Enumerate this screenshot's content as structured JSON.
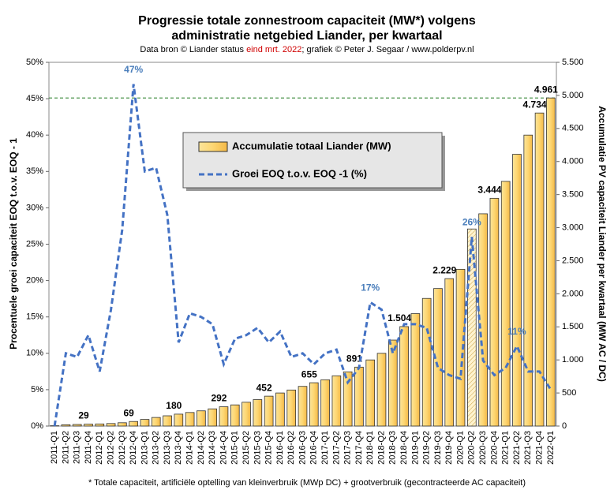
{
  "chart_data": {
    "type": "bar_line",
    "title": [
      "Progressie totale zonnestroom capaciteit (MW*) volgens",
      "administratie  netgebied Liander, per kwartaal"
    ],
    "subtitle": [
      "Data bron © Liander status ",
      "eind mrt. 2022",
      "; grafiek © Peter J. Segaar / www.polderpv.nl"
    ],
    "footnote": "* Totale capaciteit, artificiële optelling van kleinverbruik (MWp DC) + grootverbruik (gecontracteerde AC capaciteit)",
    "y_label": "Procentuele  groei capaciteit EOQ t.o.v. EOQ - 1",
    "y2_label": "Accumulatie  PV capaciteit Liander per kwartaal (MW AC / DC)",
    "categories": [
      "2011-Q1",
      "2011-Q2",
      "2011-Q3",
      "2011-Q4",
      "2012-Q1",
      "2012-Q2",
      "2012-Q3",
      "2012-Q4",
      "2013-Q1",
      "2013-Q2",
      "2013-Q3",
      "2013-Q4",
      "2014-Q1",
      "2014-Q2",
      "2014-Q3",
      "2014-Q4",
      "2015-Q1",
      "2015-Q2",
      "2015-Q3",
      "2015-Q4",
      "2016-Q1",
      "2016-Q2",
      "2016-Q3",
      "2016-Q4",
      "2017-Q1",
      "2017-Q2",
      "2017-Q3",
      "2017-Q4",
      "2018-Q1",
      "2018-Q2",
      "2018-Q3",
      "2018-Q4",
      "2019-Q1",
      "2019-Q2",
      "2019-Q3",
      "2019-Q4",
      "2020-Q1",
      "2020-Q2",
      "2020-Q3",
      "2020-Q4",
      "2021-Q1",
      "2021-Q2",
      "2021-Q3",
      "2021-Q4",
      "2022-Q1"
    ],
    "series": [
      {
        "name": "Accumulatie totaal Liander (MW)",
        "type": "bar",
        "axis": "y2",
        "color": "#fdd672",
        "values": [
          5,
          20,
          24,
          29,
          32,
          38,
          50,
          69,
          100,
          130,
          155,
          180,
          205,
          230,
          260,
          292,
          320,
          360,
          400,
          452,
          500,
          545,
          600,
          655,
          700,
          760,
          820,
          891,
          1000,
          1100,
          1300,
          1504,
          1700,
          1930,
          2080,
          2229,
          2370,
          2980,
          3210,
          3444,
          3700,
          4110,
          4400,
          4734,
          4961
        ],
        "value_labels": [
          null,
          null,
          null,
          "29",
          null,
          null,
          null,
          "69",
          null,
          null,
          null,
          "180",
          null,
          null,
          null,
          "292",
          null,
          null,
          null,
          "452",
          null,
          null,
          null,
          "655",
          null,
          null,
          null,
          "891",
          null,
          null,
          null,
          "1.504",
          null,
          null,
          null,
          "2.229",
          null,
          null,
          null,
          "3.444",
          null,
          null,
          null,
          "4.734",
          "4.961"
        ]
      },
      {
        "name": "Groei EOQ t.o.v. EOQ -1 (%)",
        "type": "line",
        "axis": "y",
        "color": "#4472c4",
        "values": [
          0,
          10,
          9.5,
          12.5,
          7.5,
          16,
          27,
          47,
          35,
          35.5,
          29,
          11.5,
          15.5,
          15,
          14,
          8.5,
          12,
          12.5,
          13.5,
          11.5,
          13,
          9.5,
          10,
          8.5,
          10,
          10.5,
          6,
          8,
          17,
          16,
          10,
          14,
          14,
          13.5,
          8,
          7,
          6.5,
          26,
          9,
          7,
          8,
          11,
          7.5,
          7.5,
          5
        ]
      }
    ],
    "annotations": [
      {
        "label": "47%",
        "category": "2012-Q4"
      },
      {
        "label": "17%",
        "category": "2018-Q1"
      },
      {
        "label": "26%",
        "category": "2020-Q2"
      },
      {
        "label": "11%",
        "category": "2021-Q2"
      }
    ],
    "hatched_categories": [
      "2020-Q2"
    ],
    "reference_line": {
      "axis": "y2",
      "value": 4961,
      "color": "#3a8a3a"
    },
    "ylim": [
      0,
      50
    ],
    "yticks": [
      {
        "value": 0,
        "label": "0%"
      },
      {
        "value": 5,
        "label": "5%"
      },
      {
        "value": 10,
        "label": "10%"
      },
      {
        "value": 15,
        "label": "15%"
      },
      {
        "value": 20,
        "label": "20%"
      },
      {
        "value": 25,
        "label": "25%"
      },
      {
        "value": 30,
        "label": "30%"
      },
      {
        "value": 35,
        "label": "35%"
      },
      {
        "value": 40,
        "label": "40%"
      },
      {
        "value": 45,
        "label": "45%"
      },
      {
        "value": 50,
        "label": "50%"
      }
    ],
    "y2lim": [
      0,
      5500
    ],
    "y2ticks": [
      0,
      {
        "value": 500,
        "label": "500"
      },
      {
        "value": 1000,
        "label": "1.000"
      },
      {
        "value": 1500,
        "label": "1.500"
      },
      {
        "value": 2000,
        "label": "2.000"
      },
      {
        "value": 2500,
        "label": "2.500"
      },
      {
        "value": 3000,
        "label": "3.000"
      },
      {
        "value": 3500,
        "label": "3.500"
      },
      {
        "value": 4000,
        "label": "4.000"
      },
      {
        "value": 4500,
        "label": "4.500"
      },
      {
        "value": 5000,
        "label": "5.000"
      },
      {
        "value": 5500,
        "label": "5.500"
      }
    ]
  }
}
